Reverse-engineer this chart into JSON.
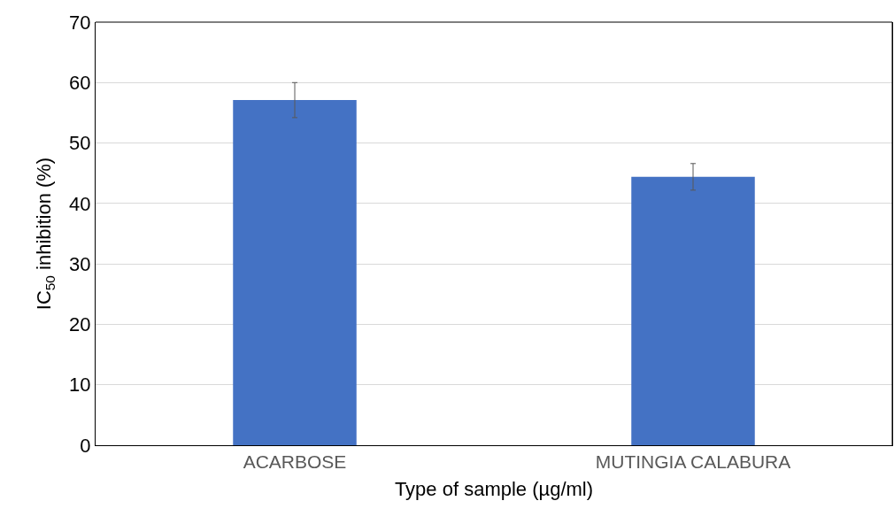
{
  "chart_data": {
    "type": "bar",
    "xlabel": "Type of sample (µg/ml)",
    "ylabel": "IC$_{50}$ inhibition (%)",
    "categories": [
      "ACARBOSE",
      "MUTINGIA CALABURA"
    ],
    "values": [
      57.1,
      44.4
    ],
    "errors": [
      2.9,
      2.2
    ],
    "color": "#4472c4",
    "ylim": [
      0,
      70
    ],
    "yticks": [
      0,
      10,
      20,
      30,
      40,
      50,
      60,
      70
    ],
    "grid": "y"
  }
}
